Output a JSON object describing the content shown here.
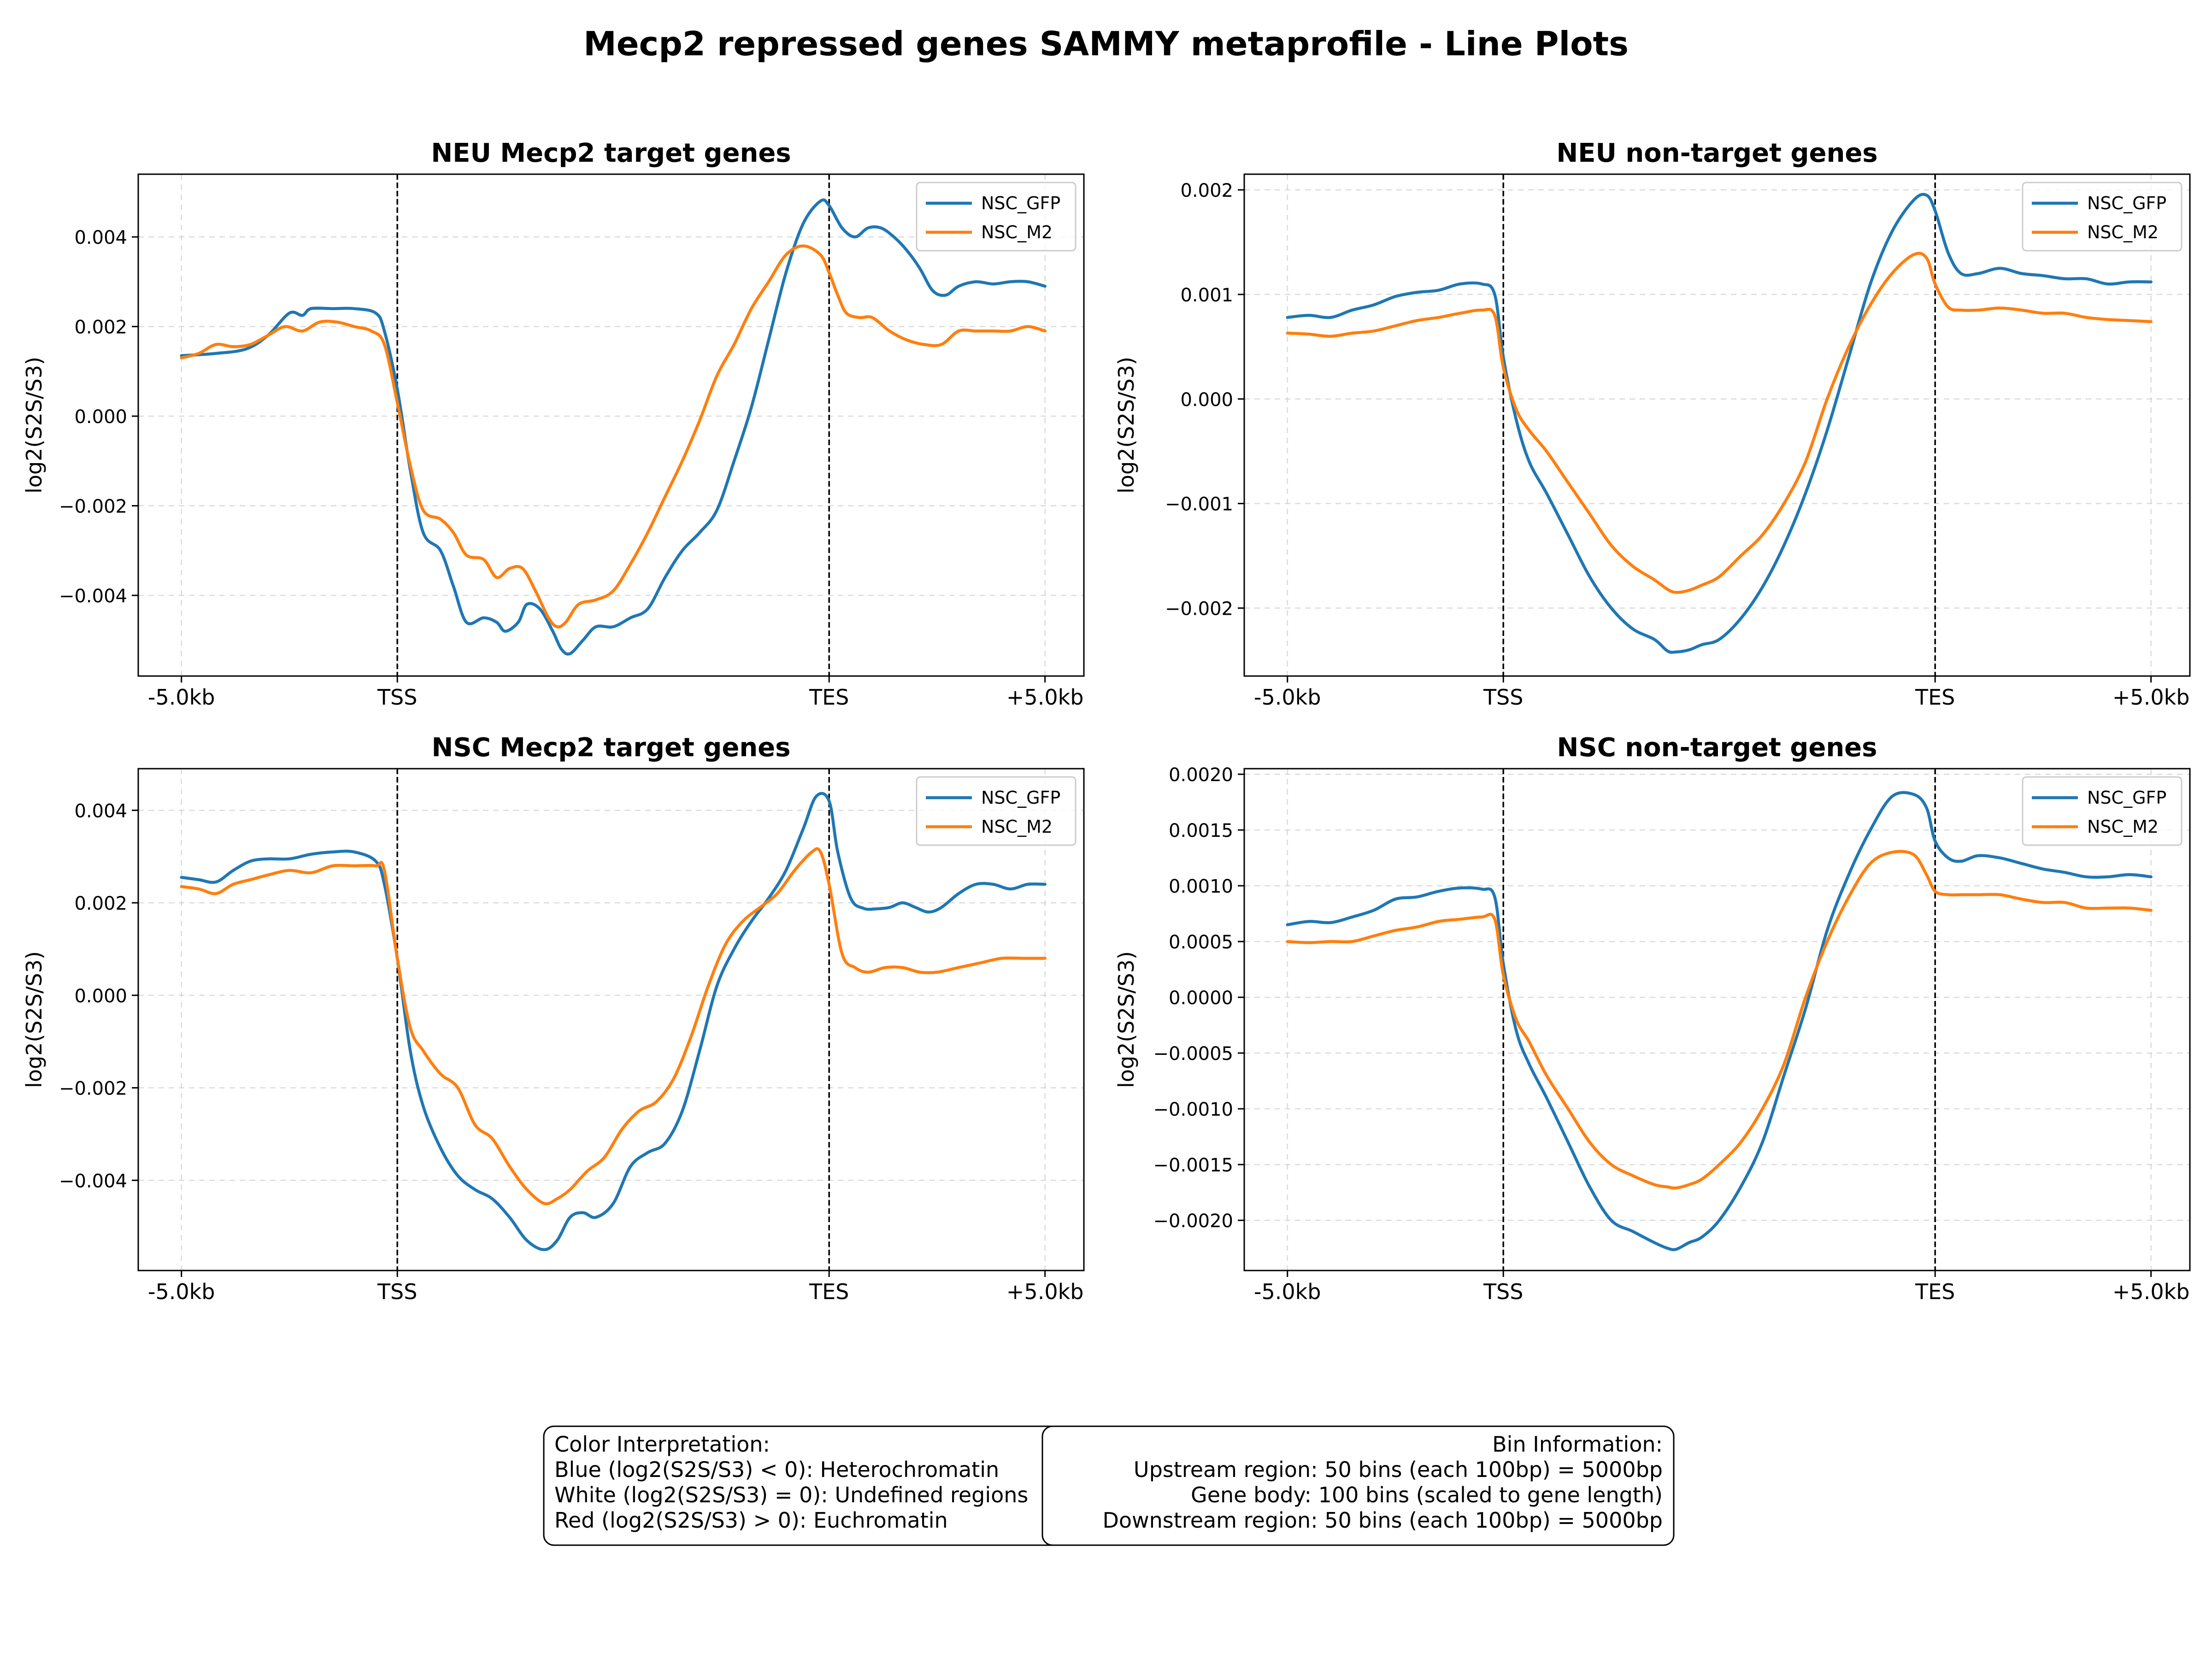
{
  "suptitle": "Mecp2 repressed genes SAMMY metaprofile - Line Plots",
  "colors": {
    "NSC_GFP": "#1f77b4",
    "NSC_M2": "#ff7f0e"
  },
  "ylabel": "log2(S2S/S3)",
  "x_tick_labels": [
    "-5.0kb",
    "TSS",
    "TES",
    "+5.0kb"
  ],
  "chart_data": [
    {
      "type": "line",
      "title": "NEU Mecp2 target genes",
      "ylabel": "log2(S2S/S3)",
      "x_tick_positions": [
        0,
        50,
        150,
        200
      ],
      "x_tick_labels": [
        "-5.0kb",
        "TSS",
        "TES",
        "+5.0kb"
      ],
      "vlines": [
        50,
        150
      ],
      "grid": true,
      "legend": "top-right",
      "xlim": [
        -10,
        209
      ],
      "ylim": [
        -0.0058,
        0.0054
      ],
      "y_ticks": [
        -0.004,
        -0.002,
        0.0,
        0.002,
        0.004
      ],
      "y_tick_labels": [
        "−0.004",
        "−0.002",
        "0.000",
        "0.002",
        "0.004"
      ],
      "series": [
        {
          "name": "NSC_GFP",
          "x": [
            0,
            8,
            15,
            20,
            25,
            28,
            30,
            35,
            40,
            45,
            47,
            50,
            53,
            56,
            60,
            63,
            66,
            70,
            73,
            75,
            78,
            80,
            83,
            86,
            88,
            90,
            93,
            96,
            100,
            104,
            108,
            112,
            116,
            120,
            124,
            128,
            132,
            136,
            140,
            144,
            148,
            150,
            153,
            156,
            159,
            162,
            165,
            168,
            171,
            174,
            177,
            180,
            184,
            188,
            192,
            196,
            200
          ],
          "y": [
            0.00135,
            0.0014,
            0.0015,
            0.0018,
            0.0023,
            0.00225,
            0.0024,
            0.0024,
            0.0024,
            0.0023,
            0.0019,
            0.0006,
            -0.0012,
            -0.0026,
            -0.003,
            -0.0038,
            -0.0046,
            -0.0045,
            -0.0046,
            -0.0048,
            -0.0046,
            -0.0042,
            -0.0043,
            -0.0048,
            -0.0052,
            -0.0053,
            -0.005,
            -0.0047,
            -0.0047,
            -0.0045,
            -0.0043,
            -0.0036,
            -0.003,
            -0.0026,
            -0.0021,
            -0.001,
            0.0002,
            0.0017,
            0.0032,
            0.0043,
            0.0048,
            0.0047,
            0.0042,
            0.004,
            0.0042,
            0.0042,
            0.004,
            0.0037,
            0.0033,
            0.0028,
            0.0027,
            0.0029,
            0.003,
            0.00295,
            0.003,
            0.003,
            0.0029
          ]
        },
        {
          "name": "NSC_M2",
          "x": [
            0,
            4,
            8,
            12,
            16,
            20,
            24,
            28,
            32,
            36,
            40,
            44,
            47,
            50,
            53,
            56,
            60,
            63,
            66,
            70,
            73,
            76,
            79,
            82,
            85,
            87,
            89,
            92,
            96,
            100,
            104,
            108,
            112,
            116,
            120,
            124,
            128,
            132,
            136,
            140,
            144,
            148,
            150,
            152,
            154,
            157,
            160,
            164,
            168,
            172,
            176,
            180,
            184,
            188,
            192,
            196,
            200
          ],
          "y": [
            0.0013,
            0.0014,
            0.0016,
            0.00155,
            0.0016,
            0.0018,
            0.002,
            0.0019,
            0.0021,
            0.0021,
            0.002,
            0.0019,
            0.0016,
            0.0003,
            -0.0011,
            -0.0021,
            -0.0023,
            -0.0026,
            -0.0031,
            -0.0032,
            -0.0036,
            -0.0034,
            -0.0034,
            -0.0039,
            -0.0045,
            -0.0047,
            -0.0046,
            -0.0042,
            -0.0041,
            -0.0039,
            -0.0033,
            -0.0026,
            -0.0018,
            -0.001,
            -0.0001,
            0.0009,
            0.0016,
            0.0024,
            0.003,
            0.0036,
            0.0038,
            0.0036,
            0.0032,
            0.0027,
            0.0023,
            0.0022,
            0.0022,
            0.0019,
            0.0017,
            0.0016,
            0.0016,
            0.0019,
            0.0019,
            0.0019,
            0.0019,
            0.002,
            0.0019
          ]
        }
      ]
    },
    {
      "type": "line",
      "title": "NEU non-target genes",
      "ylabel": "log2(S2S/S3)",
      "x_tick_positions": [
        0,
        50,
        150,
        200
      ],
      "x_tick_labels": [
        "-5.0kb",
        "TSS",
        "TES",
        "+5.0kb"
      ],
      "vlines": [
        50,
        150
      ],
      "grid": true,
      "legend": "top-right",
      "xlim": [
        -10,
        209
      ],
      "ylim": [
        -0.00265,
        0.00215
      ],
      "y_ticks": [
        -0.002,
        -0.001,
        0.0,
        0.001,
        0.002
      ],
      "y_tick_labels": [
        "−0.002",
        "−0.001",
        "0.000",
        "0.001",
        "0.002"
      ],
      "series": [
        {
          "name": "NSC_GFP",
          "x": [
            0,
            5,
            10,
            15,
            20,
            25,
            30,
            35,
            40,
            45,
            48,
            50,
            53,
            56,
            60,
            65,
            70,
            75,
            80,
            85,
            88,
            90,
            93,
            96,
            100,
            105,
            110,
            115,
            120,
            125,
            130,
            135,
            140,
            145,
            148,
            150,
            153,
            156,
            160,
            165,
            170,
            175,
            180,
            185,
            190,
            195,
            200
          ],
          "y": [
            0.00078,
            0.0008,
            0.00078,
            0.00085,
            0.0009,
            0.00098,
            0.00102,
            0.00104,
            0.0011,
            0.0011,
            0.001,
            0.0004,
            -0.0002,
            -0.0006,
            -0.0009,
            -0.0013,
            -0.0017,
            -0.002,
            -0.0022,
            -0.0023,
            -0.00241,
            -0.00242,
            -0.0024,
            -0.00235,
            -0.0023,
            -0.0021,
            -0.0018,
            -0.0014,
            -0.0009,
            -0.0003,
            0.0004,
            0.0011,
            0.0016,
            0.0019,
            0.00195,
            0.0018,
            0.0014,
            0.0012,
            0.0012,
            0.00125,
            0.0012,
            0.00118,
            0.00115,
            0.00115,
            0.0011,
            0.00112,
            0.00112
          ]
        },
        {
          "name": "NSC_M2",
          "x": [
            0,
            5,
            10,
            15,
            20,
            25,
            30,
            35,
            40,
            45,
            48,
            50,
            53,
            56,
            60,
            65,
            70,
            75,
            80,
            85,
            88,
            90,
            93,
            96,
            100,
            105,
            110,
            115,
            120,
            125,
            130,
            135,
            140,
            145,
            148,
            150,
            153,
            156,
            160,
            165,
            170,
            175,
            180,
            185,
            190,
            195,
            200
          ],
          "y": [
            0.00063,
            0.00062,
            0.0006,
            0.00063,
            0.00065,
            0.0007,
            0.00075,
            0.00078,
            0.00082,
            0.00085,
            0.0008,
            0.0003,
            -0.0001,
            -0.0003,
            -0.0005,
            -0.0008,
            -0.0011,
            -0.0014,
            -0.0016,
            -0.00173,
            -0.00182,
            -0.00185,
            -0.00183,
            -0.00178,
            -0.0017,
            -0.0015,
            -0.0013,
            -0.001,
            -0.0006,
            0.0,
            0.0005,
            0.0009,
            0.0012,
            0.00138,
            0.00135,
            0.0011,
            0.00088,
            0.00085,
            0.00085,
            0.00087,
            0.00085,
            0.00082,
            0.00082,
            0.00078,
            0.00076,
            0.00075,
            0.00074
          ]
        }
      ]
    },
    {
      "type": "line",
      "title": "NSC Mecp2 target genes",
      "ylabel": "log2(S2S/S3)",
      "x_tick_positions": [
        0,
        50,
        150,
        200
      ],
      "x_tick_labels": [
        "-5.0kb",
        "TSS",
        "TES",
        "+5.0kb"
      ],
      "vlines": [
        50,
        150
      ],
      "grid": true,
      "legend": "top-right",
      "xlim": [
        -10,
        209
      ],
      "ylim": [
        -0.00595,
        0.0049
      ],
      "y_ticks": [
        -0.004,
        -0.002,
        0.0,
        0.002,
        0.004
      ],
      "y_tick_labels": [
        "−0.004",
        "−0.002",
        "0.000",
        "0.002",
        "0.004"
      ],
      "series": [
        {
          "name": "NSC_GFP",
          "x": [
            0,
            4,
            8,
            12,
            16,
            20,
            25,
            30,
            35,
            40,
            45,
            47,
            50,
            53,
            56,
            60,
            64,
            68,
            72,
            76,
            80,
            84,
            87,
            90,
            93,
            96,
            100,
            104,
            108,
            112,
            116,
            120,
            124,
            128,
            132,
            136,
            140,
            144,
            147,
            150,
            152,
            155,
            158,
            161,
            164,
            167,
            170,
            173,
            176,
            180,
            184,
            188,
            192,
            196,
            200
          ],
          "y": [
            0.00255,
            0.0025,
            0.00245,
            0.0027,
            0.0029,
            0.00295,
            0.00295,
            0.00305,
            0.0031,
            0.0031,
            0.0029,
            0.0024,
            0.0008,
            -0.0012,
            -0.0024,
            -0.0033,
            -0.0039,
            -0.0042,
            -0.0044,
            -0.0048,
            -0.0053,
            -0.0055,
            -0.0053,
            -0.0048,
            -0.0047,
            -0.0048,
            -0.0045,
            -0.0037,
            -0.0034,
            -0.0032,
            -0.0025,
            -0.0012,
            0.0002,
            0.001,
            0.0016,
            0.0021,
            0.0027,
            0.0036,
            0.0043,
            0.0042,
            0.0031,
            0.0021,
            0.00188,
            0.00187,
            0.0019,
            0.002,
            0.0019,
            0.0018,
            0.0019,
            0.0022,
            0.0024,
            0.0024,
            0.0023,
            0.0024,
            0.0024
          ]
        },
        {
          "name": "NSC_M2",
          "x": [
            0,
            4,
            8,
            12,
            16,
            20,
            25,
            30,
            35,
            40,
            45,
            47,
            50,
            53,
            56,
            60,
            64,
            68,
            72,
            76,
            80,
            84,
            87,
            90,
            94,
            98,
            102,
            106,
            110,
            114,
            118,
            122,
            126,
            130,
            134,
            138,
            142,
            146,
            148,
            150,
            153,
            156,
            159,
            163,
            167,
            171,
            175,
            180,
            185,
            190,
            195,
            200
          ],
          "y": [
            0.00235,
            0.0023,
            0.0022,
            0.0024,
            0.0025,
            0.0026,
            0.0027,
            0.00265,
            0.0028,
            0.0028,
            0.0028,
            0.0027,
            0.0008,
            -0.0007,
            -0.0012,
            -0.0017,
            -0.002,
            -0.0028,
            -0.0031,
            -0.0037,
            -0.0042,
            -0.0045,
            -0.0044,
            -0.0042,
            -0.0038,
            -0.0035,
            -0.0029,
            -0.0025,
            -0.0023,
            -0.0018,
            -0.0009,
            0.0002,
            0.0011,
            0.0016,
            0.0019,
            0.0022,
            0.0027,
            0.0031,
            0.0031,
            0.0024,
            0.0009,
            0.0006,
            0.0005,
            0.0006,
            0.0006,
            0.0005,
            0.0005,
            0.0006,
            0.0007,
            0.0008,
            0.0008,
            0.0008
          ]
        }
      ]
    },
    {
      "type": "line",
      "title": "NSC non-target genes",
      "ylabel": "log2(S2S/S3)",
      "x_tick_positions": [
        0,
        50,
        150,
        200
      ],
      "x_tick_labels": [
        "-5.0kb",
        "TSS",
        "TES",
        "+5.0kb"
      ],
      "vlines": [
        50,
        150
      ],
      "grid": true,
      "legend": "top-right",
      "xlim": [
        -10,
        209
      ],
      "ylim": [
        -0.00245,
        0.00205
      ],
      "y_ticks": [
        -0.002,
        -0.0015,
        -0.001,
        -0.0005,
        0.0,
        0.0005,
        0.001,
        0.0015,
        0.002
      ],
      "y_tick_labels": [
        "−0.0020",
        "−0.0015",
        "−0.0010",
        "−0.0005",
        "0.0000",
        "0.0005",
        "0.0010",
        "0.0015",
        "0.0020"
      ],
      "series": [
        {
          "name": "NSC_GFP",
          "x": [
            0,
            5,
            10,
            15,
            20,
            25,
            30,
            35,
            40,
            45,
            48,
            50,
            53,
            56,
            60,
            65,
            70,
            75,
            80,
            85,
            88,
            90,
            93,
            96,
            100,
            105,
            110,
            115,
            120,
            125,
            130,
            135,
            140,
            145,
            148,
            150,
            153,
            156,
            160,
            165,
            170,
            175,
            180,
            185,
            190,
            195,
            200
          ],
          "y": [
            0.00065,
            0.00068,
            0.00067,
            0.00072,
            0.00078,
            0.00088,
            0.0009,
            0.00095,
            0.00098,
            0.00097,
            0.0009,
            0.0003,
            -0.0003,
            -0.0006,
            -0.0009,
            -0.0013,
            -0.0017,
            -0.002,
            -0.0021,
            -0.0022,
            -0.00225,
            -0.00226,
            -0.0022,
            -0.00215,
            -0.002,
            -0.0017,
            -0.0013,
            -0.0007,
            -0.0001,
            0.0006,
            0.0011,
            0.0015,
            0.0018,
            0.00182,
            0.0017,
            0.0014,
            0.00125,
            0.00122,
            0.00127,
            0.00125,
            0.0012,
            0.00115,
            0.00112,
            0.00108,
            0.00108,
            0.0011,
            0.00108
          ]
        },
        {
          "name": "NSC_M2",
          "x": [
            0,
            5,
            10,
            15,
            20,
            25,
            30,
            35,
            40,
            45,
            48,
            50,
            53,
            56,
            60,
            65,
            70,
            75,
            80,
            85,
            88,
            90,
            93,
            96,
            100,
            105,
            110,
            115,
            120,
            125,
            130,
            135,
            140,
            145,
            148,
            150,
            153,
            156,
            160,
            165,
            170,
            175,
            180,
            185,
            190,
            195,
            200
          ],
          "y": [
            0.0005,
            0.00049,
            0.0005,
            0.0005,
            0.00055,
            0.0006,
            0.00063,
            0.00068,
            0.0007,
            0.00072,
            0.0007,
            0.0002,
            -0.0002,
            -0.0004,
            -0.0007,
            -0.001,
            -0.0013,
            -0.0015,
            -0.0016,
            -0.00168,
            -0.0017,
            -0.00171,
            -0.00168,
            -0.00163,
            -0.0015,
            -0.0013,
            -0.001,
            -0.0006,
            0.0,
            0.0005,
            0.0009,
            0.0012,
            0.0013,
            0.00128,
            0.0011,
            0.00095,
            0.00092,
            0.00092,
            0.00092,
            0.00092,
            0.00088,
            0.00085,
            0.00085,
            0.0008,
            0.0008,
            0.0008,
            0.00078
          ]
        }
      ]
    }
  ],
  "info_boxes": {
    "color_interpretation": [
      "Color Interpretation:",
      "Blue (log2(S2S/S3) < 0): Heterochromatin",
      "White (log2(S2S/S3) = 0): Undefined regions",
      "Red (log2(S2S/S3) > 0): Euchromatin"
    ],
    "bin_information": [
      "Bin Information:",
      "Upstream region: 50 bins (each 100bp) = 5000bp",
      "Gene body: 100 bins (scaled to gene length)",
      "Downstream region: 50 bins (each 100bp) = 5000bp"
    ]
  }
}
